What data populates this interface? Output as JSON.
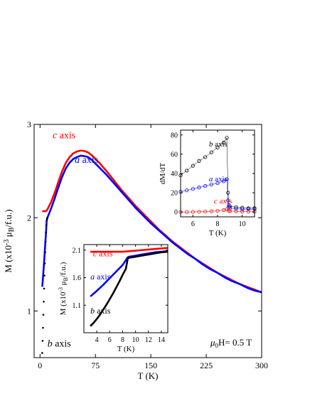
{
  "chart_data": [
    {
      "type": "line",
      "xlabel": "T (K)",
      "ylabel": "M (x10^-3 μB/f.u.)",
      "ylabel_parts": {
        "main": "M (x10",
        "exp": "-3",
        "mu": "μ",
        "sub": "B",
        "tail": "/f.u.)"
      },
      "xlim": [
        -8,
        300
      ],
      "ylim": [
        0.5,
        3
      ],
      "xticks": [
        0,
        75,
        150,
        225,
        300
      ],
      "yticks": [
        1,
        2,
        3
      ],
      "annotation": {
        "field_label": "μ0H= 0.5 T",
        "mu": "μ",
        "sub": "0",
        "rest": "H= 0.5 T"
      },
      "series": [
        {
          "name": "c axis",
          "color": "#ff0000",
          "style": "line",
          "x": [
            3,
            5,
            8,
            10,
            15,
            20,
            25,
            30,
            35,
            40,
            45,
            50,
            55,
            60,
            65,
            70,
            75,
            80,
            90,
            100,
            110,
            120,
            130,
            140,
            150,
            160,
            170,
            180,
            190,
            200,
            210,
            220,
            230,
            240,
            250,
            260,
            270,
            280,
            290,
            300
          ],
          "y": [
            2.07,
            2.07,
            2.07,
            2.09,
            2.17,
            2.27,
            2.39,
            2.5,
            2.59,
            2.65,
            2.69,
            2.71,
            2.72,
            2.715,
            2.7,
            2.67,
            2.63,
            2.59,
            2.5,
            2.4,
            2.3,
            2.21,
            2.12,
            2.04,
            1.96,
            1.88,
            1.81,
            1.74,
            1.68,
            1.62,
            1.56,
            1.51,
            1.46,
            1.41,
            1.37,
            1.33,
            1.29,
            1.26,
            1.23,
            1.2
          ]
        },
        {
          "name": "a axis",
          "color": "#0000ff",
          "style": "line",
          "x": [
            3,
            4,
            5,
            6,
            7,
            8,
            9,
            10,
            15,
            20,
            25,
            30,
            35,
            40,
            45,
            50,
            55,
            60,
            65,
            70,
            75,
            80,
            90,
            100,
            110,
            120,
            130,
            140,
            150,
            160,
            170,
            180,
            190,
            200,
            210,
            220,
            230,
            240,
            250,
            260,
            270,
            280,
            290,
            300
          ],
          "y": [
            1.26,
            1.36,
            1.47,
            1.59,
            1.71,
            1.83,
            1.97,
            2.0,
            2.1,
            2.21,
            2.33,
            2.44,
            2.53,
            2.59,
            2.63,
            2.65,
            2.665,
            2.66,
            2.65,
            2.62,
            2.58,
            2.54,
            2.46,
            2.37,
            2.28,
            2.19,
            2.1,
            2.02,
            1.94,
            1.87,
            1.8,
            1.73,
            1.67,
            1.61,
            1.56,
            1.5,
            1.45,
            1.41,
            1.36,
            1.32,
            1.29,
            1.25,
            1.22,
            1.2
          ]
        },
        {
          "name": "b axis",
          "color": "#000000",
          "style": "dots",
          "x": [
            3,
            3.5,
            4,
            4.5,
            5,
            5.5,
            6,
            6.5,
            7,
            7.5,
            8,
            8.5,
            9,
            9.5,
            10
          ],
          "y": [
            0.55,
            0.68,
            0.82,
            0.96,
            1.1,
            1.24,
            1.38,
            1.51,
            1.63,
            1.74,
            1.84,
            1.92,
            1.97,
            1.99,
            2.0
          ]
        }
      ],
      "labels": [
        {
          "series": 0,
          "letter": "c",
          "word": " axis",
          "x": 17,
          "y": 2.85
        },
        {
          "series": 1,
          "letter": "a",
          "word": " axis",
          "x": 47,
          "y": 2.59
        },
        {
          "series": 2,
          "letter": "b",
          "word": " axis",
          "x": 10,
          "y": 0.62
        }
      ]
    },
    {
      "type": "scatter",
      "xlabel": "T (K)",
      "ylabel": "dM/dT",
      "xlim": [
        5,
        11
      ],
      "ylim": [
        -5,
        85
      ],
      "xticks": [
        6,
        8,
        10
      ],
      "yticks": [
        0,
        20,
        40,
        60,
        80
      ],
      "series": [
        {
          "name": "b axis",
          "color": "#000000",
          "x": [
            5,
            5.5,
            6,
            6.5,
            7,
            7.5,
            8,
            8.5,
            8.75,
            8.85,
            8.9,
            9,
            9.5,
            10,
            10.5,
            11
          ],
          "y": [
            38,
            43,
            48,
            53,
            57,
            62,
            67,
            72,
            77,
            20,
            7,
            6,
            5,
            4.5,
            4,
            4
          ]
        },
        {
          "name": "a axis",
          "color": "#0000ff",
          "x": [
            5,
            5.5,
            6,
            6.5,
            7,
            7.5,
            8,
            8.5,
            8.75,
            8.85,
            8.9,
            9,
            9.5,
            10,
            10.5,
            11
          ],
          "y": [
            21,
            22.5,
            24,
            25.5,
            27,
            28.5,
            30,
            32,
            34,
            12,
            5,
            4,
            3.5,
            3,
            3,
            3
          ]
        },
        {
          "name": "c axis",
          "color": "#ff0000",
          "x": [
            5,
            5.5,
            6,
            6.5,
            7,
            7.5,
            8,
            8.5,
            8.75,
            8.9,
            9,
            9.5,
            10,
            10.5,
            11
          ],
          "y": [
            0,
            0,
            0.2,
            0.3,
            0.5,
            0.8,
            1.2,
            2,
            3,
            1.5,
            1,
            0.8,
            0.6,
            0.5,
            0.5
          ]
        }
      ],
      "labels": [
        {
          "series": 0,
          "letter": "b",
          "word": " axis",
          "x": 7.3,
          "y": 68
        },
        {
          "series": 1,
          "letter": "a",
          "word": " axis",
          "x": 7.3,
          "y": 32
        },
        {
          "series": 2,
          "letter": "c",
          "word": " axis",
          "x": 7.7,
          "y": 9
        }
      ]
    },
    {
      "type": "line",
      "xlabel": "T (K)",
      "ylabel": "M (x10^-3 μB/f.u.)",
      "ylabel_parts": {
        "main": "M (x10",
        "exp": "-3",
        "mu": "μ",
        "sub": "B",
        "tail": "/f.u.)"
      },
      "xlim": [
        2,
        15
      ],
      "ylim": [
        0.6,
        2.2
      ],
      "xticks": [
        4,
        6,
        8,
        10,
        12,
        14
      ],
      "yticks": [
        1.1,
        1.6,
        2.1
      ],
      "series": [
        {
          "name": "c axis",
          "color": "#ff0000",
          "x": [
            3,
            4,
            5,
            6,
            7,
            8,
            9,
            10,
            11,
            12,
            13,
            14,
            15
          ],
          "y": [
            2.07,
            2.07,
            2.07,
            2.07,
            2.07,
            2.07,
            2.08,
            2.09,
            2.1,
            2.11,
            2.12,
            2.13,
            2.14
          ]
        },
        {
          "name": "a axis",
          "color": "#0000ff",
          "x": [
            3,
            4,
            5,
            6,
            7,
            8,
            8.8,
            9,
            10,
            11,
            12,
            13,
            14,
            15
          ],
          "y": [
            1.26,
            1.36,
            1.47,
            1.59,
            1.71,
            1.83,
            1.97,
            1.98,
            2.0,
            2.02,
            2.04,
            2.06,
            2.07,
            2.08
          ]
        },
        {
          "name": "b axis",
          "color": "#000000",
          "x": [
            3,
            3.5,
            4,
            4.5,
            5,
            5.5,
            6,
            6.5,
            7,
            7.5,
            8,
            8.5,
            8.8,
            9,
            10,
            11,
            12,
            13,
            14,
            15
          ],
          "y": [
            0.72,
            0.78,
            0.85,
            0.93,
            1.02,
            1.11,
            1.21,
            1.31,
            1.42,
            1.53,
            1.65,
            1.76,
            1.95,
            1.96,
            1.98,
            2.0,
            2.02,
            2.04,
            2.06,
            2.07
          ]
        }
      ],
      "labels": [
        {
          "series": 0,
          "letter": "c",
          "word": " axis",
          "x": 3.4,
          "y": 1.99
        },
        {
          "series": 1,
          "letter": "a",
          "word": " axis",
          "x": 3.0,
          "y": 1.57
        },
        {
          "series": 2,
          "letter": "b",
          "word": " axis",
          "x": 3.0,
          "y": 0.95
        }
      ]
    }
  ]
}
